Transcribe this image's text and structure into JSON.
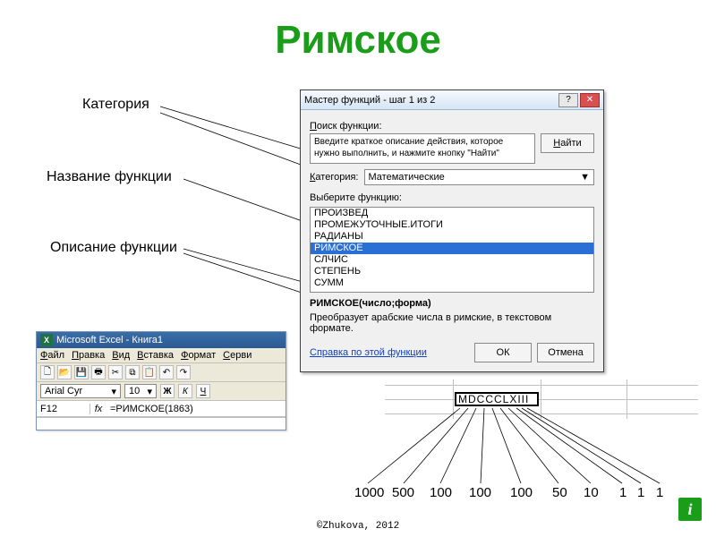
{
  "title": "Римское",
  "annotations": {
    "category": "Категория",
    "func_name": "Название функции",
    "func_desc": "Описание функции"
  },
  "wizard": {
    "title": "Мастер функций - шаг 1 из 2",
    "search_label": "Поиск функции:",
    "search_text": "Введите краткое описание действия, которое нужно выполнить, и нажмите кнопку \"Найти\"",
    "find_btn": "Найти",
    "category_label": "Категория:",
    "category_value": "Математические",
    "choose_label": "Выберите функцию:",
    "items": [
      "ПРОИЗВЕД",
      "ПРОМЕЖУТОЧНЫЕ.ИТОГИ",
      "РАДИАНЫ",
      "РИМСКОЕ",
      "СЛЧИС",
      "СТЕПЕНЬ",
      "СУММ"
    ],
    "selected_index": 3,
    "signature": "РИМСКОЕ(число;форма)",
    "description": "Преобразует арабские числа в римские, в текстовом формате.",
    "help_link": "Справка по этой функции",
    "ok": "ОК",
    "cancel": "Отмена"
  },
  "excel": {
    "title": "Microsoft Excel - Книга1",
    "menu": [
      "Файл",
      "Правка",
      "Вид",
      "Вставка",
      "Формат",
      "Серви"
    ],
    "font_name": "Arial Cyr",
    "font_size": "10",
    "cell_ref": "F12",
    "formula": "=РИМСКОЕ(1863)"
  },
  "roman": {
    "value": "MDCCCLXIII",
    "digits": [
      "1000",
      "500",
      "100",
      "100",
      "100",
      "50",
      "10",
      "1",
      "1",
      "1"
    ]
  },
  "footer": "©Zhukova, 2012"
}
